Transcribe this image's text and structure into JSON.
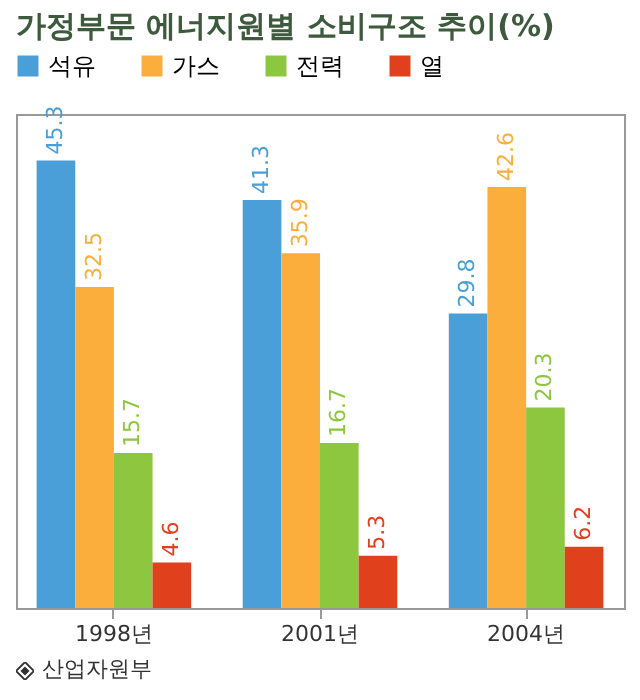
{
  "chart_data": {
    "type": "bar",
    "title": "가정부문 에너지원별 소비구조 추이(%)",
    "categories": [
      "1998년",
      "2001년",
      "2004년"
    ],
    "series": [
      {
        "name": "석유",
        "color": "#4a9fd8",
        "values": [
          45.3,
          41.3,
          29.8
        ]
      },
      {
        "name": "가스",
        "color": "#fbae3c",
        "values": [
          32.5,
          35.9,
          42.6
        ]
      },
      {
        "name": "전력",
        "color": "#8dc63f",
        "values": [
          15.7,
          16.7,
          20.3
        ]
      },
      {
        "name": "열",
        "color": "#e0401c",
        "values": [
          4.6,
          5.3,
          6.2
        ]
      }
    ],
    "data_labels": true,
    "legend": "top",
    "tick_labels": "x",
    "annotations": [
      "산업자원부"
    ]
  }
}
